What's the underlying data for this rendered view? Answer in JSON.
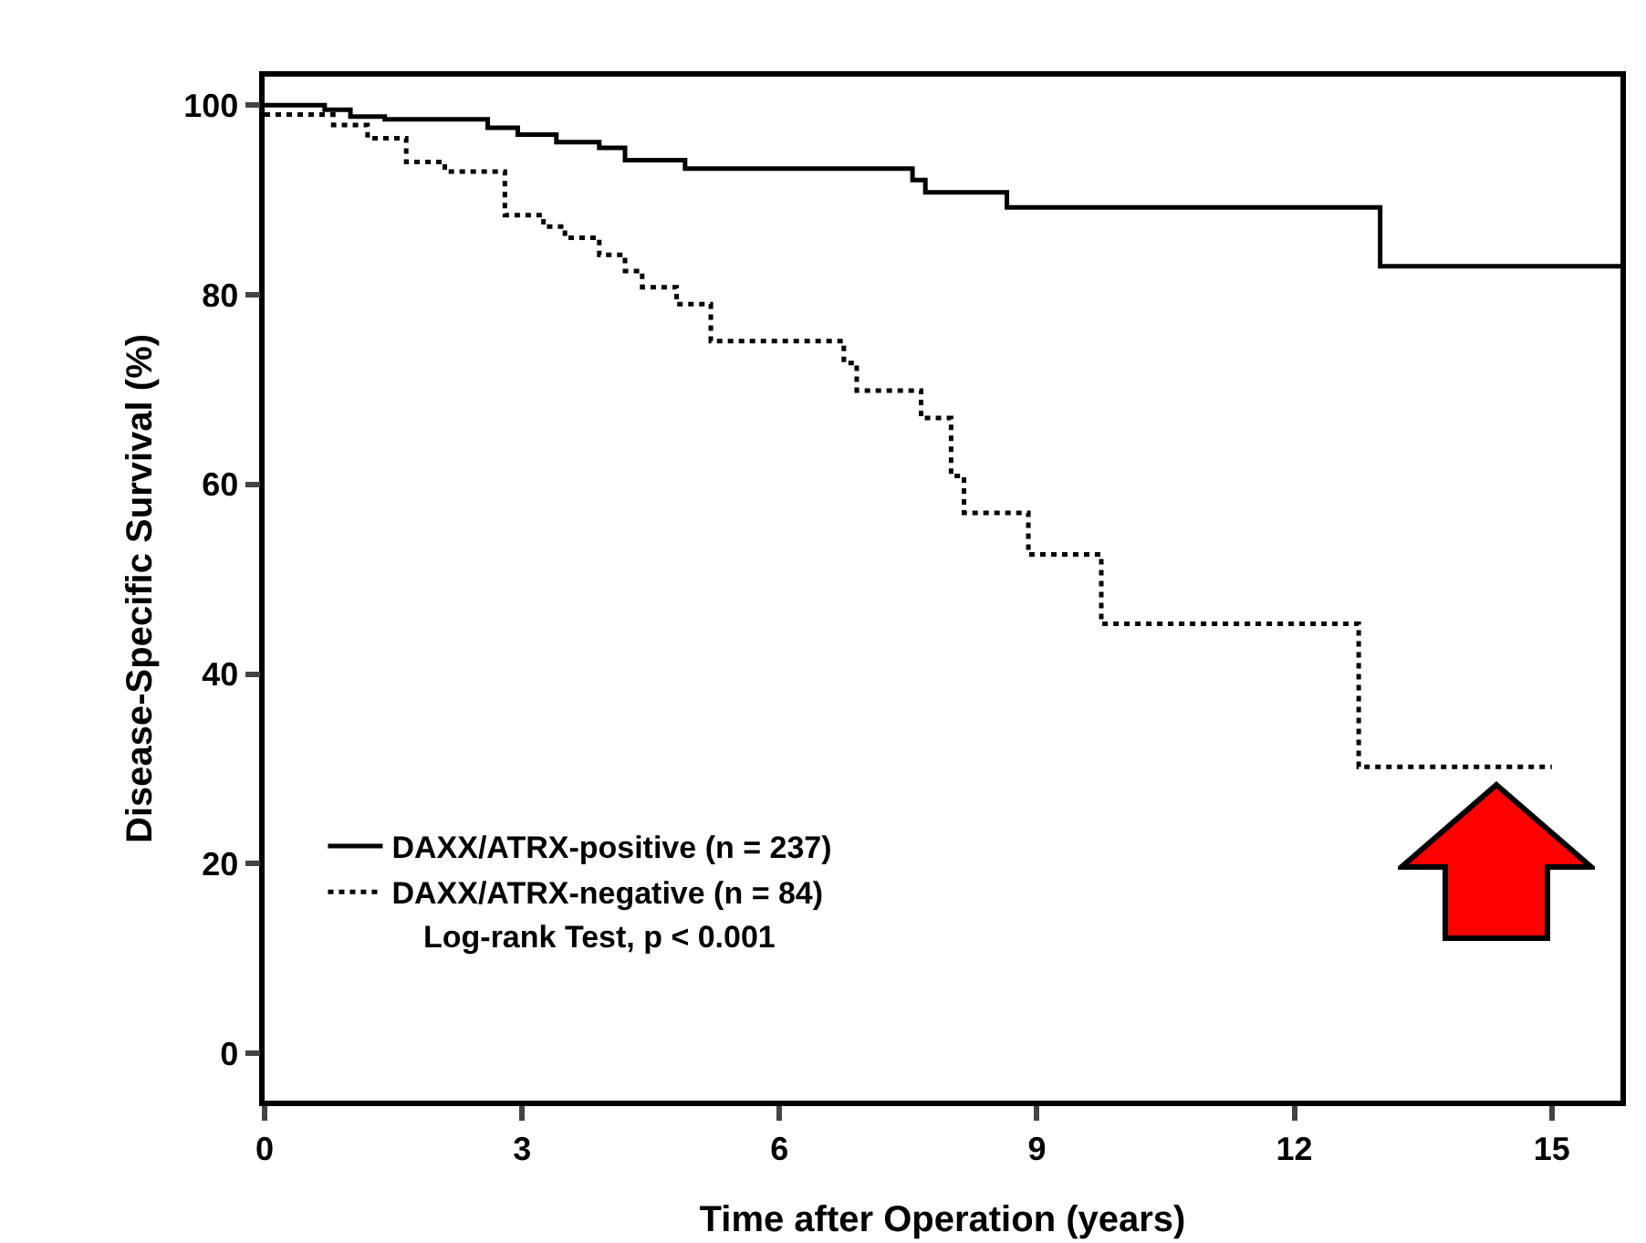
{
  "chart_data": {
    "type": "step",
    "xlabel": "Time after Operation (years)",
    "ylabel": "Disease-Specific Survival (%)",
    "xlim": [
      0,
      15.8
    ],
    "xticks": [
      0,
      3,
      6,
      9,
      12,
      15
    ],
    "ylim": [
      -5,
      103
    ],
    "yticks": [
      0,
      20,
      40,
      60,
      80,
      100
    ],
    "grid": false,
    "legend": "bottom left",
    "marker": "none",
    "series": [
      {
        "name": "DAXX/ATRX-positive (n = 237)",
        "color": "#000000",
        "line_style": "solid",
        "x": [
          0,
          0.7,
          1.0,
          1.4,
          2.6,
          2.95,
          3.4,
          3.9,
          4.2,
          4.9,
          7.55,
          7.7,
          8.65,
          13.0,
          15.8
        ],
        "values": [
          100,
          99.5,
          98.8,
          98.5,
          97.6,
          96.9,
          96.1,
          95.5,
          94.2,
          93.3,
          92.1,
          90.8,
          89.2,
          83.0,
          83.0
        ]
      },
      {
        "name": "DAXX/ATRX-negative (n = 84)",
        "color": "#000000",
        "line_style": "dotted",
        "x": [
          0,
          0.8,
          1.2,
          1.65,
          2.1,
          2.8,
          3.25,
          3.5,
          3.9,
          4.2,
          4.4,
          4.8,
          5.2,
          6.75,
          6.9,
          7.65,
          8.0,
          8.15,
          8.9,
          9.75,
          12.75,
          15.0
        ],
        "values": [
          99,
          97.9,
          96.5,
          94.0,
          93.0,
          88.4,
          87.2,
          86.0,
          84.2,
          82.5,
          80.8,
          79.0,
          75.1,
          72.8,
          69.9,
          67.0,
          60.9,
          57.0,
          52.6,
          45.3,
          30.2,
          30.2
        ]
      }
    ],
    "annotations": [
      "Log-rank Test, p < 0.001"
    ]
  }
}
